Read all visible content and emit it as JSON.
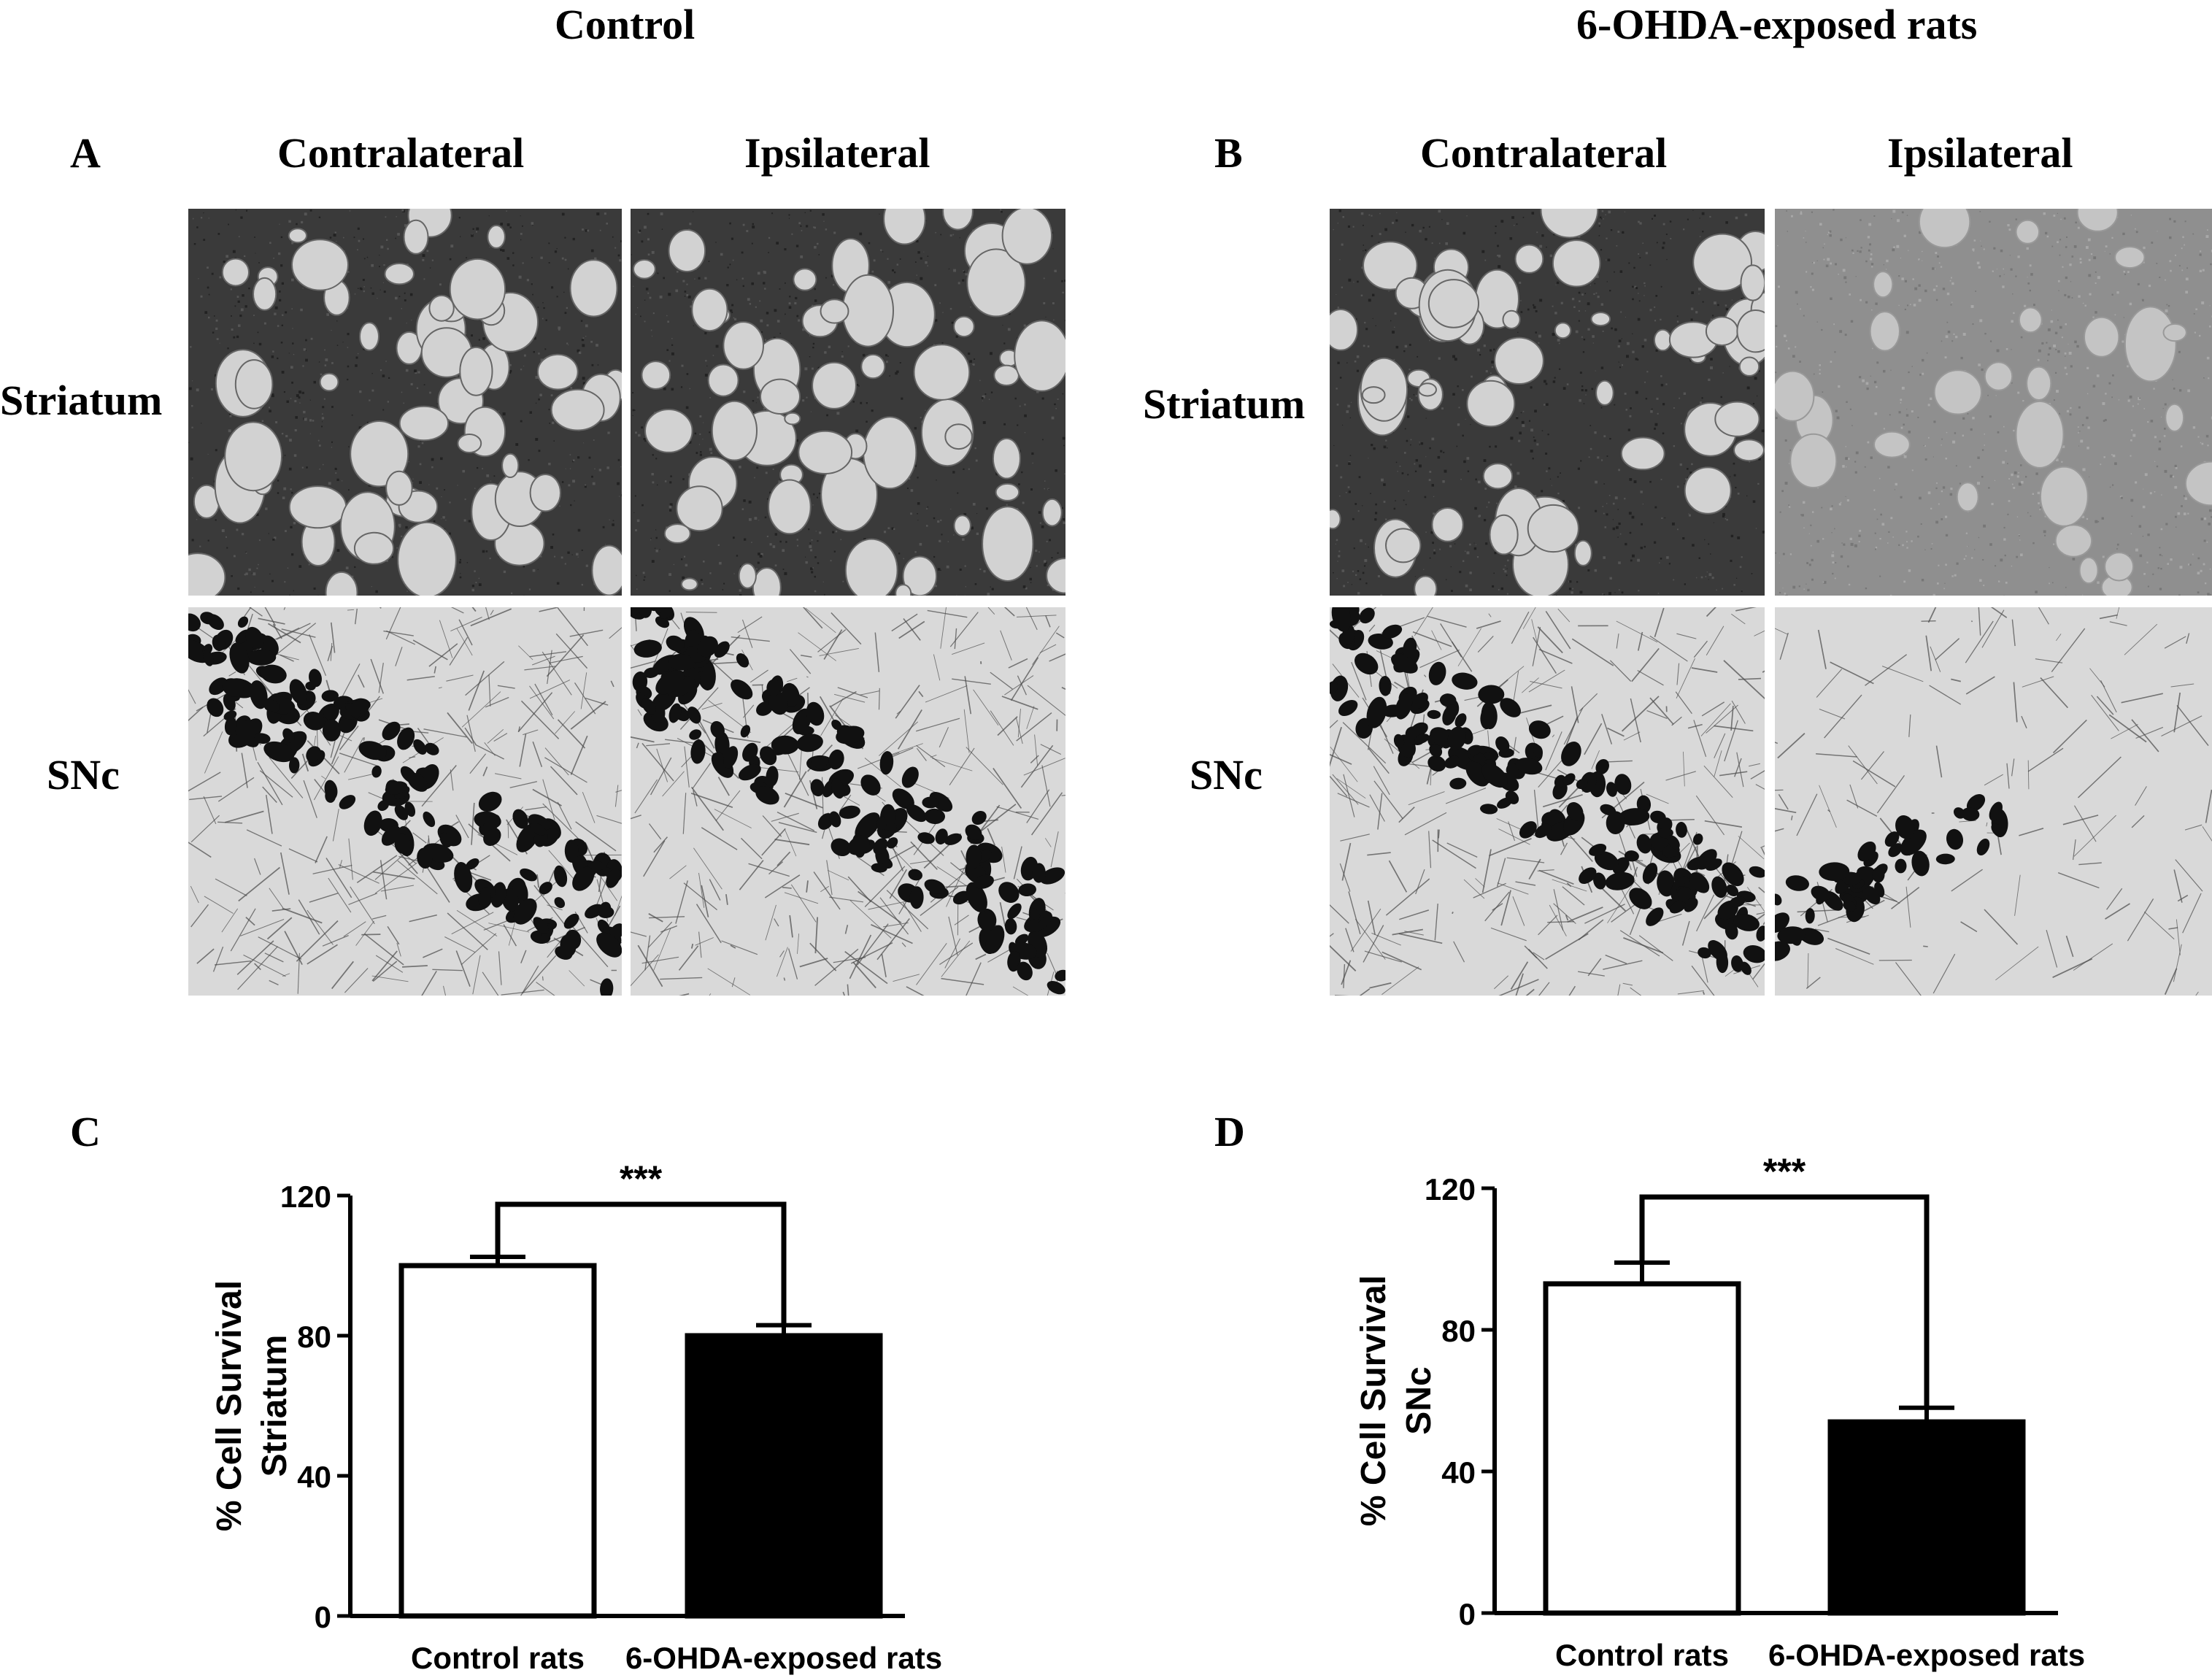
{
  "figure": {
    "group_titles": [
      "Control",
      "6-OHDA-exposed rats"
    ],
    "panel_letters": [
      "A",
      "B",
      "C",
      "D"
    ],
    "column_headers": [
      "Contralateral",
      "Ipsilateral"
    ],
    "row_labels": [
      "Striatum",
      "SNc"
    ]
  },
  "micrographs": [
    {
      "panel": "A",
      "row": "Striatum",
      "column": "Contralateral",
      "content": "striatum-dense"
    },
    {
      "panel": "A",
      "row": "Striatum",
      "column": "Ipsilateral",
      "content": "striatum-dense"
    },
    {
      "panel": "A",
      "row": "SNc",
      "column": "Contralateral",
      "content": "snc-dense"
    },
    {
      "panel": "A",
      "row": "SNc",
      "column": "Ipsilateral",
      "content": "snc-dense"
    },
    {
      "panel": "B",
      "row": "Striatum",
      "column": "Contralateral",
      "content": "striatum-dense"
    },
    {
      "panel": "B",
      "row": "Striatum",
      "column": "Ipsilateral",
      "content": "striatum-faint"
    },
    {
      "panel": "B",
      "row": "SNc",
      "column": "Contralateral",
      "content": "snc-dense"
    },
    {
      "panel": "B",
      "row": "SNc",
      "column": "Ipsilateral",
      "content": "snc-sparse"
    }
  ],
  "chart_data": [
    {
      "panel": "C",
      "type": "bar",
      "categories": [
        "Control rats",
        "6-OHDA-exposed rats"
      ],
      "values": [
        100,
        80
      ],
      "errors": [
        2.5,
        3
      ],
      "bar_colors": [
        "#ffffff",
        "#000000"
      ],
      "ylabel_lines": [
        "% Cell Survival",
        "Striatum"
      ],
      "ylim": [
        0,
        120
      ],
      "yticks": [
        0,
        40,
        80,
        120
      ],
      "significance": "***"
    },
    {
      "panel": "D",
      "type": "bar",
      "categories": [
        "Control rats",
        "6-OHDA-exposed rats"
      ],
      "values": [
        93,
        54
      ],
      "errors": [
        6,
        4
      ],
      "bar_colors": [
        "#ffffff",
        "#000000"
      ],
      "ylabel_lines": [
        "% Cell Survival",
        "SNc"
      ],
      "ylim": [
        0,
        120
      ],
      "yticks": [
        0,
        40,
        80,
        120
      ],
      "significance": "***"
    }
  ]
}
